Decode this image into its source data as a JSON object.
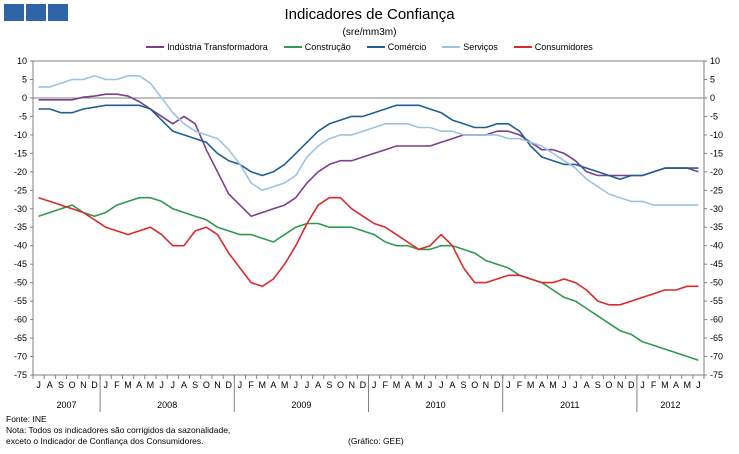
{
  "header": {
    "logo_icon": "three-blue-squares-icon"
  },
  "chart_data": {
    "type": "line",
    "title": "Indicadores de Confiança",
    "subtitle": "(sre/mm3m)",
    "ylim": [
      -75,
      10
    ],
    "yticks": [
      "10",
      "5",
      "0",
      "-5",
      "-10",
      "-15",
      "-20",
      "-25",
      "-30",
      "-35",
      "-40",
      "-45",
      "-50",
      "-55",
      "-60",
      "-65",
      "-70",
      "-75"
    ],
    "month_labels": [
      "J",
      "A",
      "S",
      "O",
      "N",
      "D",
      "J",
      "F",
      "M",
      "A",
      "M",
      "J",
      "J",
      "A",
      "S",
      "O",
      "N",
      "D",
      "J",
      "F",
      "M",
      "A",
      "M",
      "J",
      "J",
      "A",
      "S",
      "O",
      "N",
      "D",
      "J",
      "F",
      "M",
      "A",
      "M",
      "J",
      "J",
      "A",
      "S",
      "O",
      "N",
      "D",
      "J",
      "F",
      "M",
      "A",
      "M",
      "J",
      "J",
      "A",
      "S",
      "O",
      "N",
      "D",
      "J",
      "F",
      "M",
      "A",
      "M",
      "J"
    ],
    "years": [
      {
        "label": "2007",
        "start": 0,
        "count": 6
      },
      {
        "label": "2008",
        "start": 6,
        "count": 12
      },
      {
        "label": "2009",
        "start": 18,
        "count": 12
      },
      {
        "label": "2010",
        "start": 30,
        "count": 12
      },
      {
        "label": "2011",
        "start": 42,
        "count": 12
      },
      {
        "label": "2012",
        "start": 54,
        "count": 6
      }
    ],
    "series": [
      {
        "name": "Indústria Transformadora",
        "color": "#7b3f8c",
        "values": [
          -0.5,
          -0.5,
          -0.5,
          -0.5,
          0.2,
          0.5,
          1,
          1,
          0.5,
          -1,
          -3,
          -5,
          -7,
          -5,
          -7,
          -14,
          -20,
          -26,
          -29,
          -32,
          -31,
          -30,
          -29,
          -27,
          -23,
          -20,
          -18,
          -17,
          -17,
          -16,
          -15,
          -14,
          -13,
          -13,
          -13,
          -13,
          -12,
          -11,
          -10,
          -10,
          -10,
          -9,
          -9,
          -10,
          -12,
          -14,
          -14,
          -15,
          -17,
          -20,
          -21,
          -21,
          -21,
          -21,
          -21,
          -20,
          -19,
          -19,
          -19,
          -20
        ]
      },
      {
        "name": "Construção",
        "color": "#2e9a4e",
        "values": [
          -32,
          -31,
          -30,
          -29,
          -31,
          -32,
          -31,
          -29,
          -28,
          -27,
          -27,
          -28,
          -30,
          -31,
          -32,
          -33,
          -35,
          -36,
          -37,
          -37,
          -38,
          -39,
          -37,
          -35,
          -34,
          -34,
          -35,
          -35,
          -35,
          -36,
          -37,
          -39,
          -40,
          -40,
          -41,
          -41,
          -40,
          -40,
          -41,
          -42,
          -44,
          -45,
          -46,
          -48,
          -49,
          -50,
          -52,
          -54,
          -55,
          -57,
          -59,
          -61,
          -63,
          -64,
          -66,
          -67,
          -68,
          -69,
          -70,
          -71
        ]
      },
      {
        "name": "Comércio",
        "color": "#1f5f93",
        "values": [
          -3,
          -3,
          -4,
          -4,
          -3,
          -2.5,
          -2,
          -2,
          -2,
          -2,
          -3,
          -6,
          -9,
          -10,
          -11,
          -12,
          -15,
          -17,
          -18,
          -20,
          -21,
          -20,
          -18,
          -15,
          -12,
          -9,
          -7,
          -6,
          -5,
          -5,
          -4,
          -3,
          -2,
          -2,
          -2,
          -3,
          -4,
          -6,
          -7,
          -8,
          -8,
          -7,
          -7,
          -9,
          -13,
          -16,
          -17,
          -18,
          -18,
          -19,
          -20,
          -21,
          -22,
          -21,
          -21,
          -20,
          -19,
          -19,
          -19,
          -19
        ]
      },
      {
        "name": "Serviços",
        "color": "#9dc3e3",
        "values": [
          3,
          3,
          4,
          5,
          5,
          6,
          5,
          5,
          6,
          6,
          4,
          0,
          -4,
          -7,
          -9,
          -10,
          -11,
          -14,
          -18,
          -23,
          -25,
          -24,
          -23,
          -21,
          -16,
          -13,
          -11,
          -10,
          -10,
          -9,
          -8,
          -7,
          -7,
          -7,
          -8,
          -8,
          -9,
          -9,
          -10,
          -10,
          -10,
          -10,
          -11,
          -11,
          -12,
          -13,
          -15,
          -17,
          -19,
          -22,
          -24,
          -26,
          -27,
          -28,
          -28,
          -29,
          -29,
          -29,
          -29,
          -29
        ]
      },
      {
        "name": "Consumidores",
        "color": "#d92b2b",
        "values": [
          -27,
          -28,
          -29,
          -30,
          -31,
          -33,
          -35,
          -36,
          -37,
          -36,
          -35,
          -37,
          -40,
          -40,
          -36,
          -35,
          -37,
          -42,
          -46,
          -50,
          -51,
          -49,
          -45,
          -40,
          -34,
          -29,
          -27,
          -27,
          -30,
          -32,
          -34,
          -35,
          -37,
          -39,
          -41,
          -40,
          -37,
          -40,
          -46,
          -50,
          -50,
          -49,
          -48,
          -48,
          -49,
          -50,
          -50,
          -49,
          -50,
          -52,
          -55,
          -56,
          -56,
          -55,
          -54,
          -53,
          -52,
          -52,
          -51,
          -51
        ]
      }
    ]
  },
  "notes": {
    "source": "Fonte: INE",
    "note_line1": "Nota: Todos os indicadores são corrigidos da sazonalidade,",
    "note_line2": "exceto o Indicador de Confiança dos Consumidores.",
    "credit": "(Gráfico: GEE)"
  }
}
